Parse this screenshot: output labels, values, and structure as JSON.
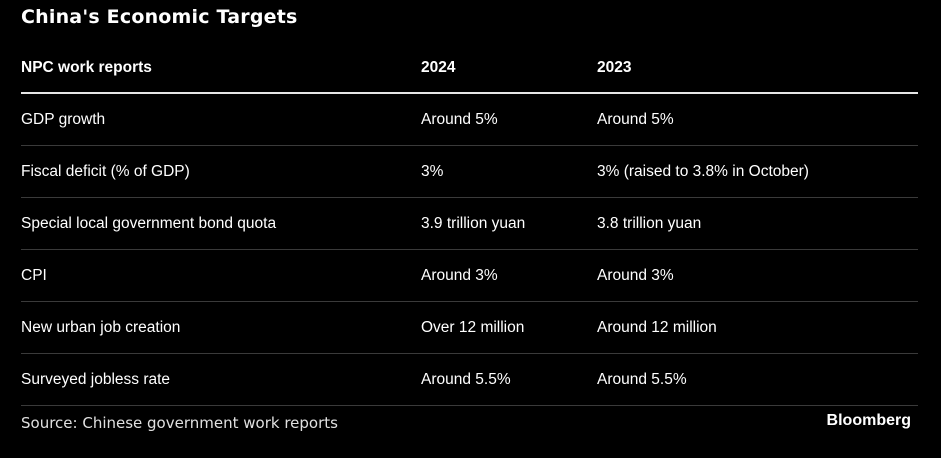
{
  "title": "China's Economic Targets",
  "table": {
    "headers": [
      "NPC work reports",
      "2024",
      "2023"
    ],
    "rows": [
      [
        "GDP growth",
        "Around 5%",
        "Around 5%"
      ],
      [
        "Fiscal deficit (% of GDP)",
        "3%",
        "3% (raised to 3.8% in October)"
      ],
      [
        "Special local government bond quota",
        "3.9 trillion yuan",
        "3.8 trillion yuan"
      ],
      [
        "CPI",
        "Around 3%",
        "Around 3%"
      ],
      [
        "New urban job creation",
        "Over 12 million",
        "Around 12 million"
      ],
      [
        "Surveyed jobless rate",
        "Around 5.5%",
        "Around 5.5%"
      ]
    ]
  },
  "footer": {
    "source": "Source: Chinese government work reports",
    "brand": "Bloomberg"
  }
}
